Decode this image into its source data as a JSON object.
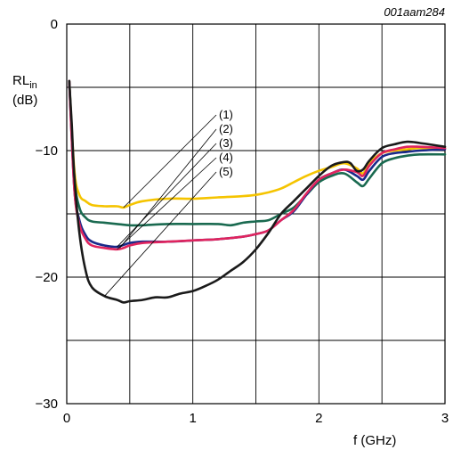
{
  "chart_data": {
    "type": "line",
    "figure_code": "001aam284",
    "ylabel_main": "RL",
    "ylabel_sub": "in",
    "ylabel_unit": "(dB)",
    "xlabel": "f (GHz)",
    "xlim": [
      0,
      3
    ],
    "ylim": [
      -30,
      0
    ],
    "x_ticks": [
      0,
      1,
      2,
      3
    ],
    "x_tick_labels": [
      "0",
      "1",
      "2",
      "3"
    ],
    "y_ticks": [
      0,
      -10,
      -20,
      -30
    ],
    "y_tick_labels": [
      "0",
      "−10",
      "−20",
      "−30"
    ],
    "grid": true,
    "series": [
      {
        "name": "(1)",
        "color": "#f5c400",
        "x": [
          0.02,
          0.06,
          0.1,
          0.15,
          0.2,
          0.3,
          0.4,
          0.45,
          0.5,
          0.6,
          0.8,
          1.0,
          1.2,
          1.4,
          1.5,
          1.6,
          1.7,
          1.8,
          1.9,
          2.0,
          2.1,
          2.2,
          2.3,
          2.35,
          2.4,
          2.5,
          2.6,
          2.7,
          2.8,
          3.0
        ],
        "y": [
          -4.5,
          -11.5,
          -13.5,
          -14.0,
          -14.3,
          -14.4,
          -14.4,
          -14.5,
          -14.3,
          -14.0,
          -13.8,
          -13.8,
          -13.7,
          -13.6,
          -13.5,
          -13.3,
          -13.0,
          -12.5,
          -12.0,
          -11.6,
          -11.3,
          -11.0,
          -11.4,
          -11.8,
          -11.0,
          -10.2,
          -10.0,
          -9.9,
          -9.8,
          -9.8
        ]
      },
      {
        "name": "(2)",
        "color": "#1a6a50",
        "x": [
          0.02,
          0.06,
          0.1,
          0.15,
          0.2,
          0.3,
          0.4,
          0.5,
          0.6,
          0.8,
          1.0,
          1.2,
          1.3,
          1.4,
          1.5,
          1.6,
          1.7,
          1.8,
          1.9,
          2.0,
          2.1,
          2.2,
          2.3,
          2.35,
          2.4,
          2.5,
          2.6,
          2.7,
          2.8,
          3.0
        ],
        "y": [
          -4.5,
          -12.0,
          -14.5,
          -15.3,
          -15.6,
          -15.7,
          -15.8,
          -15.9,
          -15.9,
          -15.8,
          -15.8,
          -15.8,
          -15.9,
          -15.7,
          -15.6,
          -15.5,
          -15.0,
          -14.5,
          -13.5,
          -12.5,
          -12.0,
          -11.8,
          -12.5,
          -12.8,
          -12.2,
          -11.0,
          -10.6,
          -10.4,
          -10.3,
          -10.3
        ]
      },
      {
        "name": "(3)",
        "color": "#1a2a8a",
        "x": [
          0.02,
          0.06,
          0.1,
          0.15,
          0.2,
          0.3,
          0.4,
          0.5,
          0.6,
          0.8,
          1.0,
          1.2,
          1.4,
          1.5,
          1.6,
          1.7,
          1.8,
          1.9,
          2.0,
          2.1,
          2.2,
          2.3,
          2.35,
          2.4,
          2.5,
          2.6,
          2.7,
          2.8,
          3.0
        ],
        "y": [
          -4.5,
          -13.0,
          -15.5,
          -16.7,
          -17.2,
          -17.5,
          -17.6,
          -17.3,
          -17.2,
          -17.2,
          -17.1,
          -17.0,
          -16.8,
          -16.6,
          -16.3,
          -15.5,
          -14.8,
          -13.5,
          -12.3,
          -11.8,
          -11.5,
          -12.0,
          -12.3,
          -11.6,
          -10.5,
          -10.2,
          -10.1,
          -10.0,
          -9.9
        ]
      },
      {
        "name": "(4)",
        "color": "#e0245e",
        "x": [
          0.02,
          0.06,
          0.1,
          0.15,
          0.2,
          0.3,
          0.4,
          0.45,
          0.5,
          0.6,
          0.8,
          1.0,
          1.2,
          1.4,
          1.5,
          1.6,
          1.7,
          1.8,
          1.9,
          2.0,
          2.1,
          2.2,
          2.3,
          2.35,
          2.4,
          2.5,
          2.6,
          2.7,
          2.8,
          3.0
        ],
        "y": [
          -4.5,
          -13.0,
          -15.8,
          -17.0,
          -17.5,
          -17.7,
          -17.8,
          -17.7,
          -17.5,
          -17.3,
          -17.2,
          -17.1,
          -17.0,
          -16.8,
          -16.6,
          -16.3,
          -15.5,
          -14.7,
          -13.4,
          -12.3,
          -11.8,
          -11.5,
          -11.7,
          -12.0,
          -11.2,
          -10.2,
          -9.9,
          -9.7,
          -9.7,
          -9.8
        ]
      },
      {
        "name": "(5)",
        "color": "#1a1a1a",
        "x": [
          0.02,
          0.04,
          0.06,
          0.1,
          0.15,
          0.2,
          0.3,
          0.4,
          0.45,
          0.5,
          0.6,
          0.7,
          0.8,
          0.9,
          1.0,
          1.1,
          1.2,
          1.3,
          1.4,
          1.5,
          1.6,
          1.7,
          1.8,
          1.9,
          2.0,
          2.1,
          2.2,
          2.25,
          2.3,
          2.35,
          2.4,
          2.5,
          2.6,
          2.7,
          2.8,
          3.0
        ],
        "y": [
          -4.5,
          -8.0,
          -12.0,
          -16.5,
          -19.5,
          -20.8,
          -21.5,
          -21.8,
          -22.0,
          -21.9,
          -21.8,
          -21.6,
          -21.6,
          -21.3,
          -21.1,
          -20.7,
          -20.2,
          -19.5,
          -18.8,
          -17.8,
          -16.5,
          -15.0,
          -14.0,
          -13.0,
          -12.0,
          -11.2,
          -10.9,
          -11.0,
          -11.6,
          -11.5,
          -10.8,
          -9.8,
          -9.5,
          -9.3,
          -9.4,
          -9.7
        ]
      }
    ]
  }
}
